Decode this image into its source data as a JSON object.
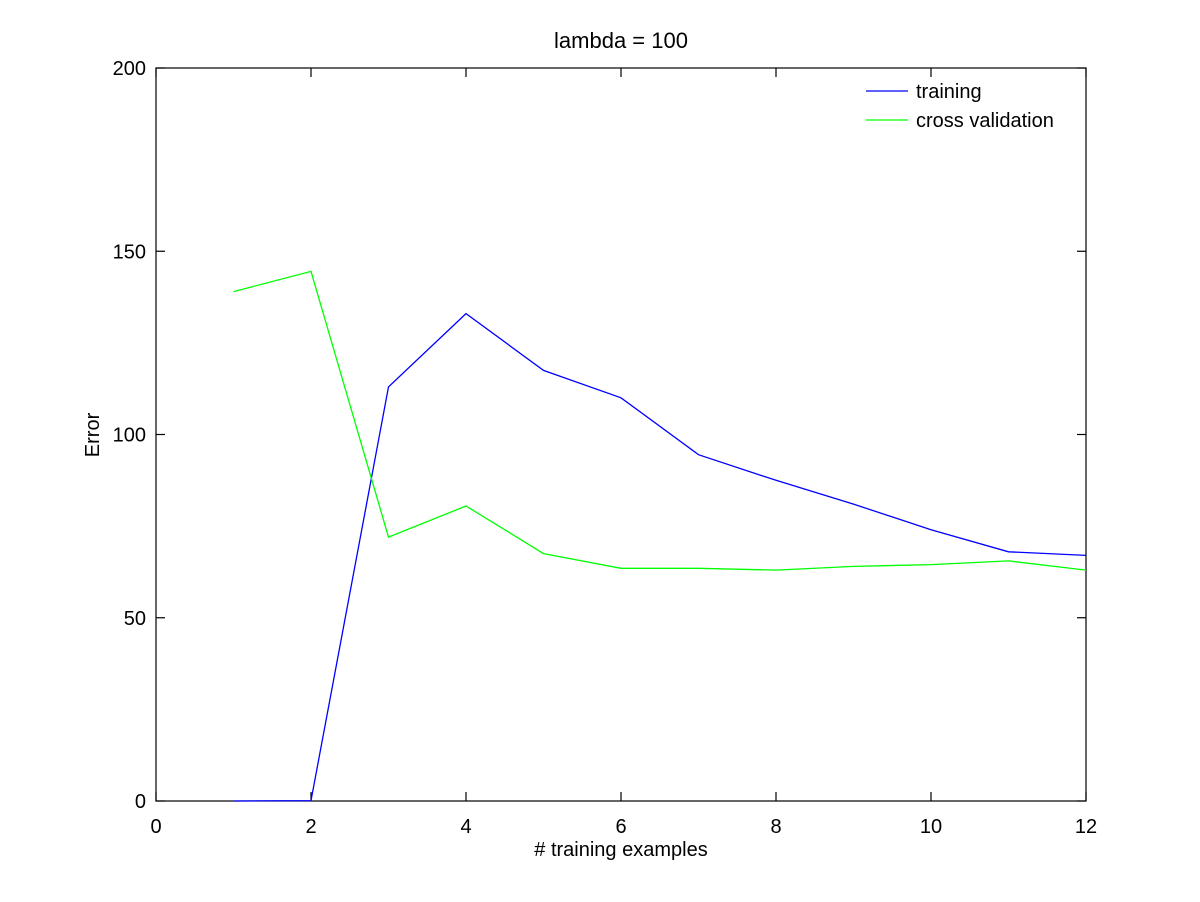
{
  "chart_data": {
    "type": "line",
    "title": "lambda = 100",
    "xlabel": "# training examples",
    "ylabel": "Error",
    "xlim": [
      0,
      12
    ],
    "ylim": [
      0,
      200
    ],
    "xticks": [
      0,
      2,
      4,
      6,
      8,
      10,
      12
    ],
    "yticks": [
      0,
      50,
      100,
      150,
      200
    ],
    "grid": false,
    "legend_position": "top-right",
    "x": [
      1,
      2,
      3,
      4,
      5,
      6,
      7,
      8,
      9,
      10,
      11,
      12
    ],
    "series": [
      {
        "name": "training",
        "color": "#0000ff",
        "values": [
          0,
          0.1,
          113,
          133,
          117.5,
          110,
          94.5,
          87.5,
          81,
          74,
          68,
          67
        ]
      },
      {
        "name": "cross validation",
        "color": "#00ff00",
        "values": [
          139,
          144.5,
          72,
          80.5,
          67.5,
          63.5,
          63.5,
          63,
          64,
          64.5,
          65.5,
          63
        ]
      }
    ]
  }
}
